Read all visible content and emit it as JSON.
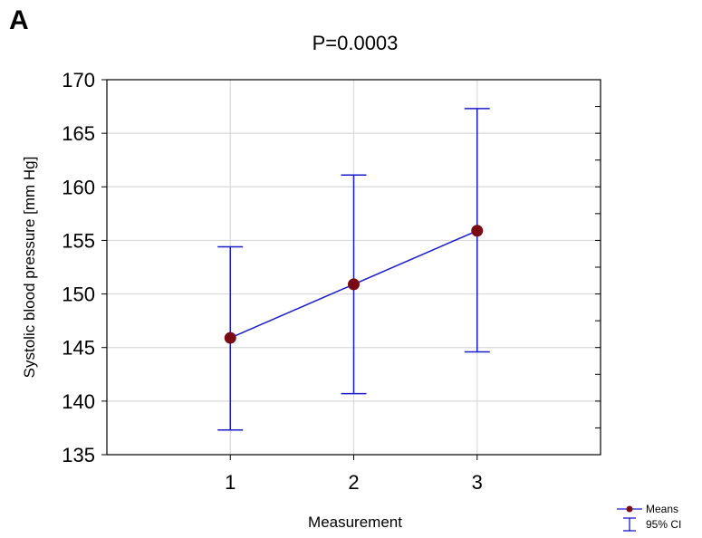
{
  "panel_label": "A",
  "chart_data": {
    "type": "line",
    "title": "P=0.0003",
    "xlabel": "Measurement",
    "ylabel": "Systolic blood pressure [mm Hg]",
    "categories": [
      "1",
      "2",
      "3"
    ],
    "xlim": [
      0,
      4
    ],
    "ylim": [
      135,
      170
    ],
    "yticks": [
      135,
      140,
      145,
      150,
      155,
      160,
      165,
      170
    ],
    "y_minor_step": 2.5,
    "grid": true,
    "series": [
      {
        "name": "Means",
        "values": [
          145.9,
          150.9,
          155.9
        ],
        "ci_lower": [
          137.3,
          140.7,
          144.6
        ],
        "ci_upper": [
          154.4,
          161.1,
          167.3
        ]
      }
    ],
    "legend": {
      "position": "bottom-right",
      "entries": [
        "Means",
        "95% CI"
      ]
    },
    "colors": {
      "line": "#1a1acd",
      "marker": "#7a0a14",
      "grid": "#d9d9d9"
    }
  }
}
